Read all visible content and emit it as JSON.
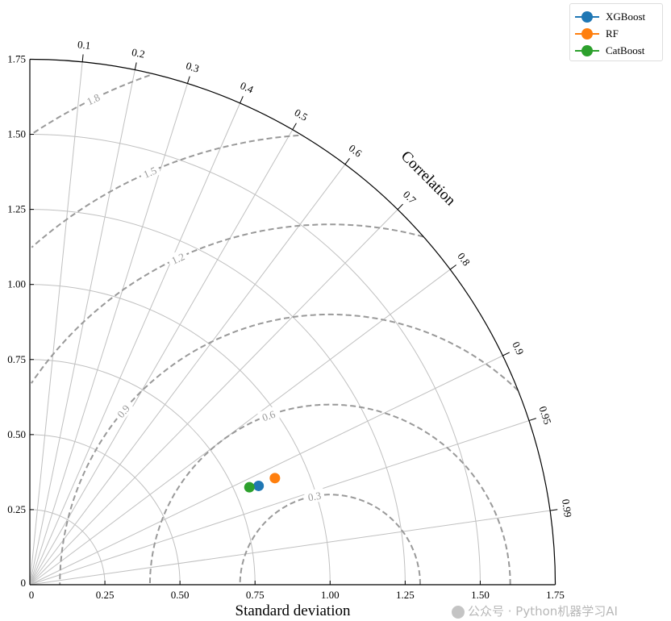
{
  "chart_data": {
    "type": "scatter",
    "subtype": "taylor-diagram",
    "xlabel": "Standard deviation",
    "angle_label": "Correlation",
    "std_range": [
      0,
      1.75
    ],
    "std_ticks": [
      "0",
      "0.25",
      "0.50",
      "0.75",
      "1.00",
      "1.25",
      "1.50",
      "1.75"
    ],
    "std_tick_values": [
      0,
      0.25,
      0.5,
      0.75,
      1.0,
      1.25,
      1.5,
      1.75
    ],
    "corr_ticks": [
      "0.1",
      "0.2",
      "0.3",
      "0.4",
      "0.5",
      "0.6",
      "0.7",
      "0.8",
      "0.9",
      "0.95",
      "0.99"
    ],
    "corr_tick_values": [
      0.1,
      0.2,
      0.3,
      0.4,
      0.5,
      0.6,
      0.7,
      0.8,
      0.9,
      0.95,
      0.99
    ],
    "reference_std": 1.0,
    "rmsd_contours": [
      "0.3",
      "0.6",
      "0.9",
      "1.2",
      "1.5",
      "1.8"
    ],
    "rmsd_values": [
      0.3,
      0.6,
      0.9,
      1.2,
      1.5,
      1.8
    ],
    "grid": true,
    "legend_position": "top-right",
    "series": [
      {
        "name": "XGBoost",
        "std": 0.83,
        "corr": 0.918,
        "color": "#1f77b4"
      },
      {
        "name": "RF",
        "std": 0.89,
        "corr": 0.917,
        "color": "#ff7f0e"
      },
      {
        "name": "CatBoost",
        "std": 0.8,
        "corr": 0.914,
        "color": "#2ca02c"
      }
    ]
  },
  "watermark": "公众号 · Python机器学习AI"
}
